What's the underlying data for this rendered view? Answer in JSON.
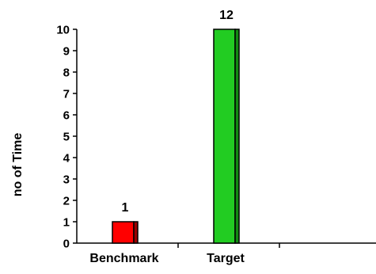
{
  "chart_data": {
    "type": "bar",
    "title": "",
    "xlabel": "",
    "ylabel": "no of Time",
    "categories": [
      "Benchmark",
      "Target"
    ],
    "values": [
      1,
      12
    ],
    "data_labels": [
      "1",
      "12"
    ],
    "ylim": [
      0,
      10
    ],
    "yticks": [
      "0",
      "1",
      "2",
      "3",
      "4",
      "5",
      "6",
      "7",
      "8",
      "9",
      "10"
    ],
    "x_slots": 3,
    "grid": false,
    "legend": "none",
    "bar_colors": [
      "#ff0000",
      "#22cc22"
    ],
    "bar_shade_colors": [
      "#990000",
      "#138a13"
    ]
  }
}
